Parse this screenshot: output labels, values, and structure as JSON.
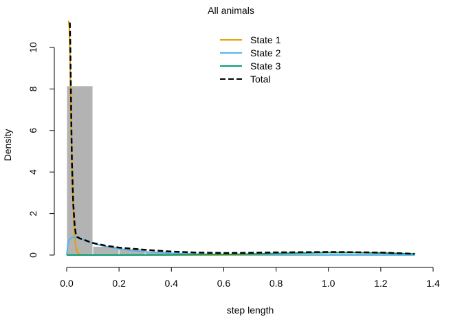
{
  "chart_data": {
    "type": "line",
    "title": "All animals",
    "xlabel": "step length",
    "ylabel": "Density",
    "xlim": [
      0,
      1.4
    ],
    "ylim": [
      0,
      11
    ],
    "xticks": [
      "0.0",
      "0.2",
      "0.4",
      "0.6",
      "0.8",
      "1.0",
      "1.2",
      "1.4"
    ],
    "yticks": [
      "0",
      "2",
      "4",
      "6",
      "8",
      "10"
    ],
    "grid": false,
    "legend_position": "top-center",
    "histogram": {
      "bin_edges": [
        0.0,
        0.1,
        0.2,
        0.3,
        0.4,
        0.5,
        0.6,
        0.7,
        0.8,
        0.9,
        1.0,
        1.1,
        1.2,
        1.3
      ],
      "densities": [
        8.15,
        0.42,
        0.3,
        0.18,
        0.1,
        0.07,
        0.05,
        0.05,
        0.06,
        0.07,
        0.08,
        0.08,
        0.07
      ],
      "color": "#b3b3b3"
    },
    "series": [
      {
        "name": "State 1",
        "color": "#e69f00",
        "style": "solid",
        "x": [
          0.005,
          0.01,
          0.013,
          0.016,
          0.02,
          0.025,
          0.03,
          0.035,
          0.04,
          0.05,
          0.06,
          0.08,
          0.1,
          1.33
        ],
        "y": [
          11.5,
          11.0,
          9.5,
          7.0,
          4.5,
          2.2,
          1.0,
          0.4,
          0.15,
          0.03,
          0.01,
          0.0,
          0.0,
          0.0
        ]
      },
      {
        "name": "State 2",
        "color": "#56b4e9",
        "style": "solid",
        "x": [
          0.0,
          0.005,
          0.01,
          0.02,
          0.03,
          0.04,
          0.05,
          0.06,
          0.08,
          0.1,
          0.12,
          0.15,
          0.2,
          0.25,
          0.3,
          0.4,
          0.5,
          0.6,
          0.7,
          0.8,
          0.9,
          1.0,
          1.1,
          1.2,
          1.33
        ],
        "y": [
          0.0,
          0.55,
          0.75,
          0.84,
          0.86,
          0.84,
          0.8,
          0.75,
          0.66,
          0.57,
          0.5,
          0.41,
          0.3,
          0.22,
          0.16,
          0.09,
          0.05,
          0.03,
          0.02,
          0.01,
          0.01,
          0.0,
          0.0,
          0.0,
          0.0
        ]
      },
      {
        "name": "State 3",
        "color": "#009e73",
        "style": "solid",
        "x": [
          0.0,
          0.2,
          0.4,
          0.6,
          0.7,
          0.8,
          0.9,
          1.0,
          1.1,
          1.2,
          1.33
        ],
        "y": [
          0.0,
          0.0,
          0.01,
          0.03,
          0.05,
          0.08,
          0.1,
          0.12,
          0.12,
          0.1,
          0.06
        ]
      },
      {
        "name": "Total",
        "color": "#000000",
        "style": "dashed",
        "x": [
          0.012,
          0.014,
          0.016,
          0.018,
          0.02,
          0.025,
          0.03,
          0.035,
          0.04,
          0.05,
          0.06,
          0.08,
          0.1,
          0.15,
          0.2,
          0.3,
          0.4,
          0.5,
          0.6,
          0.7,
          0.8,
          0.9,
          1.0,
          1.1,
          1.2,
          1.33
        ],
        "y": [
          11.2,
          10.0,
          8.0,
          6.0,
          4.5,
          2.5,
          1.5,
          1.0,
          0.88,
          0.8,
          0.76,
          0.67,
          0.58,
          0.45,
          0.36,
          0.25,
          0.17,
          0.12,
          0.1,
          0.11,
          0.13,
          0.14,
          0.15,
          0.14,
          0.12,
          0.06
        ]
      }
    ]
  }
}
